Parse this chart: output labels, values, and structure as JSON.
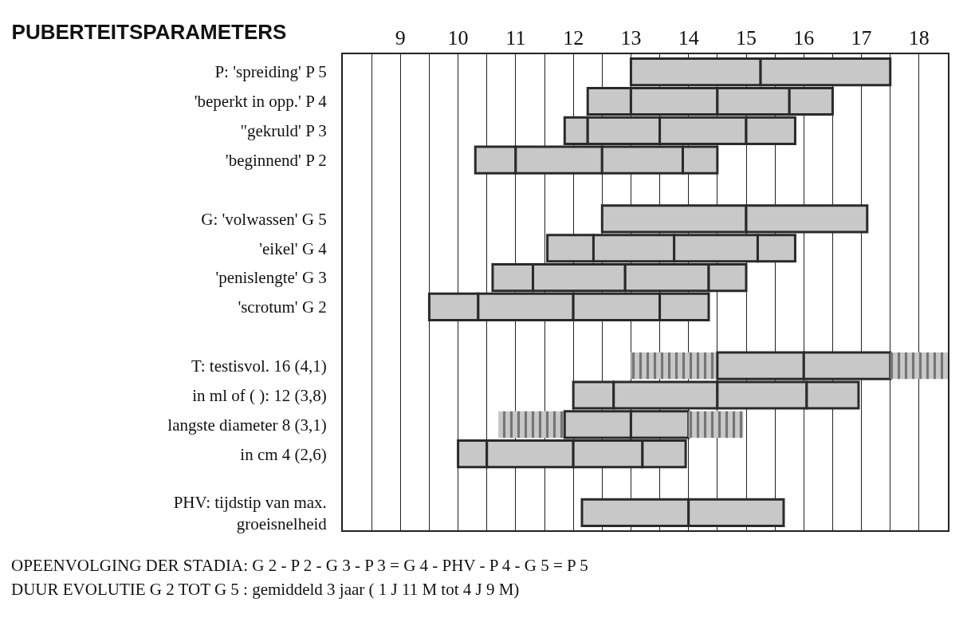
{
  "chart_data": {
    "type": "bar",
    "orientation": "horizontal",
    "title": "PUBERTEITSPARAMETERS",
    "categories": [
      "P: 'spreiding' P 5",
      "'beperkt in opp.' P 4",
      "\"gekruld' P 3",
      "'beginnend' P 2",
      null,
      "G: 'volwassen' G 5",
      "'eikel' G 4",
      "'penislengte' G 3",
      "'scrotum' G 2",
      null,
      "T: testisvol. 16 (4,1)",
      "in ml of ( ): 12 (3,8)",
      "langste diameter 8 (3,1)",
      "in cm 4 (2,6)",
      null,
      "PHV: tijdstip van max.\ngroeisnelheid"
    ],
    "series": [
      {
        "color": "#c8c8c8",
        "line_style": "dashed",
        "base": [
          null,
          null,
          null,
          null,
          null,
          null,
          null,
          null,
          null,
          null,
          13.0,
          null,
          10.7,
          null,
          null,
          null
        ],
        "values": [
          null,
          null,
          null,
          null,
          null,
          null,
          null,
          null,
          null,
          null,
          1.5,
          null,
          1.15,
          null,
          null,
          null
        ]
      },
      {
        "color": "#c8c8c8",
        "base": [
          13.0,
          12.25,
          11.85,
          10.3,
          null,
          12.5,
          11.55,
          10.6,
          9.5,
          null,
          14.5,
          12.0,
          11.85,
          10.0,
          null,
          12.15
        ],
        "values": [
          2.25,
          0.75,
          0.4,
          0.7,
          null,
          2.5,
          0.8,
          0.7,
          0.85,
          null,
          1.5,
          0.7,
          1.15,
          0.5,
          null,
          1.85
        ]
      },
      {
        "color": "#c8c8c8",
        "base": [
          15.25,
          13.0,
          12.25,
          11.0,
          null,
          15.0,
          12.35,
          11.3,
          10.35,
          null,
          16.0,
          12.7,
          13.0,
          10.5,
          null,
          14.0
        ],
        "values": [
          2.25,
          1.5,
          1.25,
          1.5,
          null,
          2.1,
          1.4,
          1.6,
          1.65,
          null,
          1.5,
          1.8,
          1.0,
          1.5,
          null,
          1.65
        ]
      },
      {
        "color": "#c8c8c8",
        "base": [
          null,
          14.5,
          13.5,
          12.5,
          null,
          null,
          13.75,
          12.9,
          12.0,
          null,
          null,
          14.5,
          null,
          12.0,
          null,
          null
        ],
        "values": [
          null,
          1.25,
          1.5,
          1.4,
          null,
          null,
          1.45,
          1.45,
          1.5,
          null,
          null,
          1.55,
          null,
          1.2,
          null,
          null
        ]
      },
      {
        "color": "#c8c8c8",
        "base": [
          null,
          15.75,
          15.0,
          13.9,
          null,
          null,
          15.2,
          14.35,
          13.5,
          null,
          null,
          16.05,
          null,
          13.2,
          null,
          null
        ],
        "values": [
          null,
          0.75,
          0.85,
          0.6,
          null,
          null,
          0.65,
          0.65,
          0.85,
          null,
          null,
          0.9,
          null,
          0.75,
          null,
          null
        ]
      },
      {
        "color": "#c8c8c8",
        "line_style": "dashed",
        "base": [
          null,
          null,
          null,
          null,
          null,
          null,
          null,
          null,
          null,
          null,
          17.5,
          null,
          14.0,
          null,
          null,
          null
        ],
        "values": [
          null,
          null,
          null,
          null,
          null,
          null,
          null,
          null,
          null,
          null,
          1.0,
          null,
          0.95,
          null,
          null,
          null
        ]
      }
    ],
    "xlim": [
      8,
      18.5
    ],
    "xticks": [
      {
        "value": 8.5,
        "label": null
      },
      9,
      {
        "value": 9.5,
        "label": null
      },
      10,
      {
        "value": 10.5,
        "label": null
      },
      11,
      {
        "value": 11.5,
        "label": null
      },
      12,
      {
        "value": 12.5,
        "label": null
      },
      13,
      {
        "value": 13.5,
        "label": null
      },
      14,
      {
        "value": 14.5,
        "label": null
      },
      15,
      {
        "value": 15.5,
        "label": null
      },
      16,
      {
        "value": 16.5,
        "label": null
      },
      17,
      {
        "value": 17.5,
        "label": null
      },
      18
    ],
    "grid": "x",
    "annotations": [
      "OPEENVOLGING DER STADIA: G 2 - P 2 - G 3 - P 3 = G 4 - PHV - P 4 - G 5 = P 5",
      "DUUR EVOLUTIE G 2 TOT G 5 : gemiddeld 3 jaar ( 1 J 11 M tot 4 J 9 M)"
    ]
  }
}
